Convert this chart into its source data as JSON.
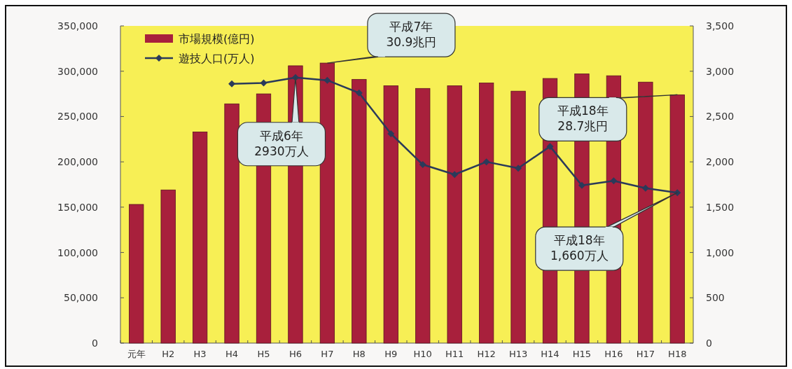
{
  "chart_data": {
    "type": "bar",
    "categories": [
      "元年",
      "H2",
      "H3",
      "H4",
      "H5",
      "H6",
      "H7",
      "H8",
      "H9",
      "H10",
      "H11",
      "H12",
      "H13",
      "H14",
      "H15",
      "H16",
      "H17",
      "H18"
    ],
    "series": [
      {
        "name": "市場規模(億円)",
        "color": "#a8203c",
        "values": [
          153000,
          169000,
          233000,
          264000,
          275000,
          306000,
          309000,
          291000,
          284000,
          281000,
          284000,
          287000,
          278000,
          292000,
          297000,
          295000,
          288000,
          274000
        ]
      },
      {
        "name": "遊技人口(万人)",
        "type": "line",
        "axis": "y2",
        "color": "#2a3a5a",
        "marker": "diamond",
        "values": [
          null,
          null,
          null,
          2860,
          2870,
          2930,
          2900,
          2760,
          2310,
          1970,
          1860,
          2000,
          1930,
          2170,
          1740,
          1790,
          1710,
          1660
        ]
      }
    ],
    "ylim": [
      0,
      350000
    ],
    "yticks": [
      {
        "value": 0,
        "label": "0"
      },
      {
        "value": 50000,
        "label": "50,000"
      },
      {
        "value": 100000,
        "label": "100,000"
      },
      {
        "value": 150000,
        "label": "150,000"
      },
      {
        "value": 200000,
        "label": "200,000"
      },
      {
        "value": 250000,
        "label": "250,000"
      },
      {
        "value": 300000,
        "label": "300,000"
      },
      {
        "value": 350000,
        "label": "350,000"
      }
    ],
    "y2lim": [
      0,
      3500
    ],
    "y2ticks": [
      {
        "value": 0,
        "label": "0"
      },
      {
        "value": 500,
        "label": "500"
      },
      {
        "value": 1000,
        "label": "1,000"
      },
      {
        "value": 1500,
        "label": "1,500"
      },
      {
        "value": 2000,
        "label": "2,000"
      },
      {
        "value": 2500,
        "label": "2,500"
      },
      {
        "value": 3000,
        "label": "3,000"
      },
      {
        "value": 3500,
        "label": "3,500"
      }
    ],
    "legend": "top left",
    "annotations": [
      {
        "text": "平成7年\n30.9兆円",
        "x": "H7",
        "y": 309000
      },
      "平成6年\n2930万人",
      {
        "text": "平成18年\n28.7兆円",
        "x": "H18",
        "y": 274000
      },
      "平成18年\n1,660万人"
    ]
  }
}
